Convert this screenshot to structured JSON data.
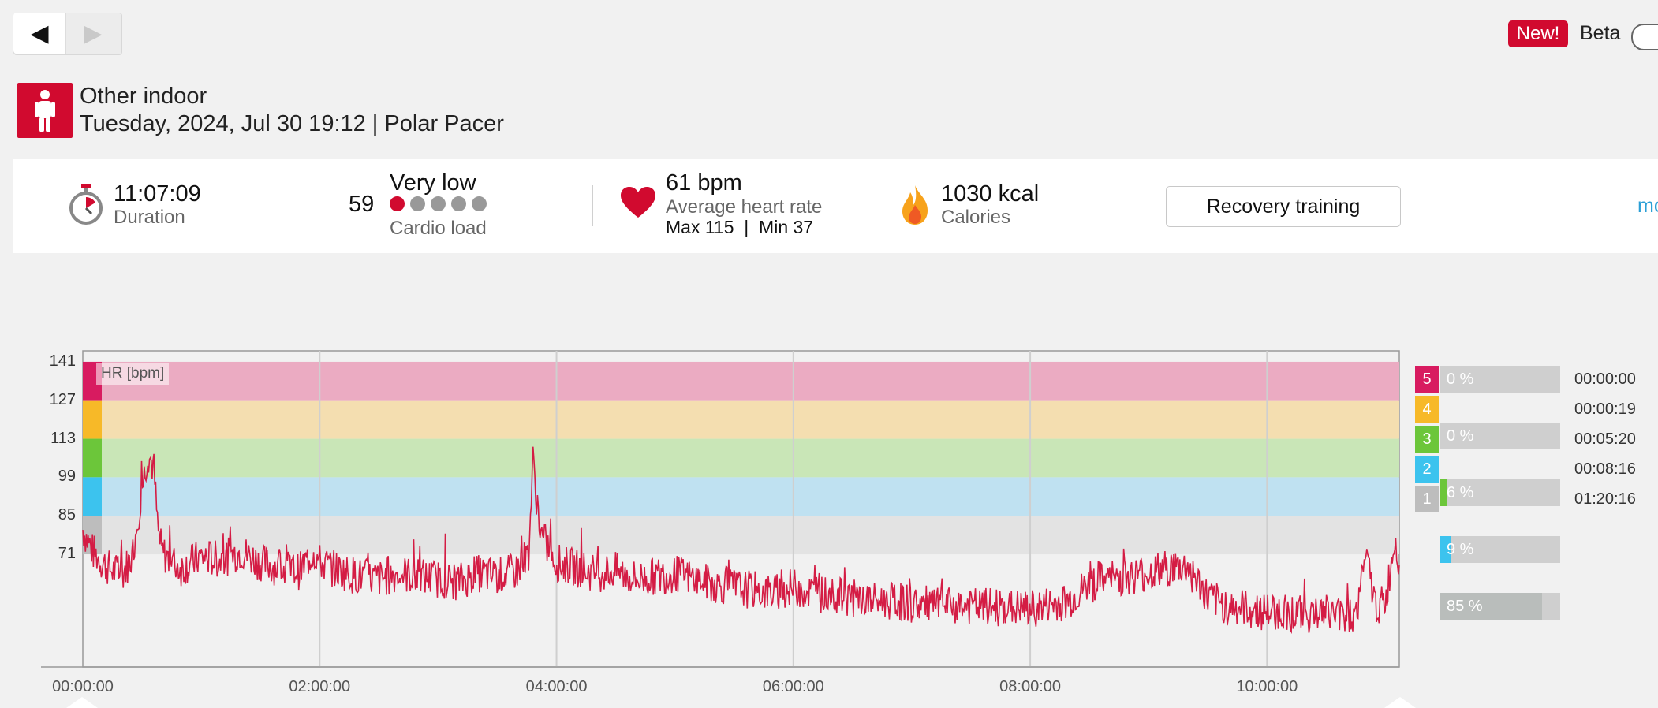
{
  "nav": {
    "back_icon": "◀",
    "forward_icon": "▶"
  },
  "header": {
    "new_badge": "New!",
    "beta_label": "Beta"
  },
  "sport": {
    "name": "Other indoor",
    "date_device": "Tuesday, 2024, Jul 30 19:12 | Polar Pacer"
  },
  "summary": {
    "duration_value": "11:07:09",
    "duration_label": "Duration",
    "cardio_number": "59",
    "cardio_level": "Very low",
    "cardio_label": "Cardio load",
    "cardio_dots": 1,
    "hr_avg": "61 bpm",
    "hr_label": "Average heart rate",
    "hr_maxmin": "Max 115  |  Min 37",
    "calories_value": "1030 kcal",
    "calories_label": "Calories",
    "recovery_button": "Recovery training",
    "more_link": "mo"
  },
  "colors": {
    "accent": "#d10a2f",
    "line": "#d41c44",
    "zone5": "#ebabc2",
    "zone4": "#f4deb0",
    "zone3": "#c9e6b7",
    "zone2": "#bfe1f1",
    "zone1": "#e3e3e3"
  },
  "chart_data": {
    "type": "line",
    "label": "HR [bpm]",
    "y_ticks": [
      "141",
      "127",
      "113",
      "99",
      "85",
      "71"
    ],
    "x_ticks": [
      "00:00:00",
      "02:00:00",
      "04:00:00",
      "06:00:00",
      "08:00:00",
      "10:00:00"
    ],
    "xlim_minutes": [
      0,
      667
    ],
    "ylim": [
      30,
      145
    ],
    "zones": [
      {
        "zone": "5",
        "percent": "0 %",
        "time": "00:00:00",
        "range": [
          127,
          141
        ],
        "color": "#d81b60",
        "fill": 0
      },
      {
        "zone": "4",
        "percent": "0 %",
        "time": "00:00:19",
        "range": [
          113,
          127
        ],
        "color": "#f7b928",
        "fill": 0
      },
      {
        "zone": "3",
        "percent": "6 %",
        "time": "00:05:20",
        "range": [
          99,
          113
        ],
        "color": "#6cc63a",
        "fill": 0.06
      },
      {
        "zone": "2",
        "percent": "9 %",
        "time": "00:08:16",
        "range": [
          85,
          99
        ],
        "color": "#3cc3ee",
        "fill": 0.09
      },
      {
        "zone": "1",
        "percent": "85 %",
        "time": "01:20:16",
        "range": [
          71,
          85
        ],
        "color": "#bdbdbd",
        "fill": 0.85
      }
    ],
    "series": [
      {
        "x": [
          0,
          5,
          10,
          15,
          20,
          25,
          30,
          33,
          36,
          38,
          40,
          45,
          50,
          60,
          70,
          80,
          90,
          100,
          110,
          117,
          120,
          130,
          140,
          150,
          160,
          170,
          180,
          190,
          200,
          210,
          220,
          226,
          228,
          232,
          240,
          250,
          260,
          270,
          280,
          290,
          300,
          310,
          320,
          330,
          340,
          350,
          360,
          370,
          380,
          390,
          400,
          410,
          420,
          440,
          460,
          480,
          500,
          510,
          520,
          530,
          540,
          550,
          560,
          570,
          580,
          590,
          600,
          610,
          620,
          630,
          640,
          645,
          650,
          655,
          660,
          665,
          667
        ],
        "y": [
          80,
          72,
          68,
          65,
          64,
          70,
          95,
          108,
          102,
          80,
          72,
          68,
          66,
          70,
          69,
          72,
          68,
          66,
          65,
          72,
          68,
          65,
          63,
          62,
          64,
          63,
          62,
          61,
          64,
          63,
          65,
          72,
          105,
          78,
          68,
          66,
          64,
          65,
          62,
          63,
          64,
          62,
          60,
          59,
          58,
          57,
          59,
          57,
          56,
          55,
          54,
          54,
          53,
          52,
          52,
          51,
          54,
          60,
          62,
          63,
          64,
          66,
          66,
          55,
          52,
          51,
          50,
          50,
          49,
          50,
          49,
          49,
          70,
          52,
          53,
          78,
          68
        ]
      }
    ]
  }
}
